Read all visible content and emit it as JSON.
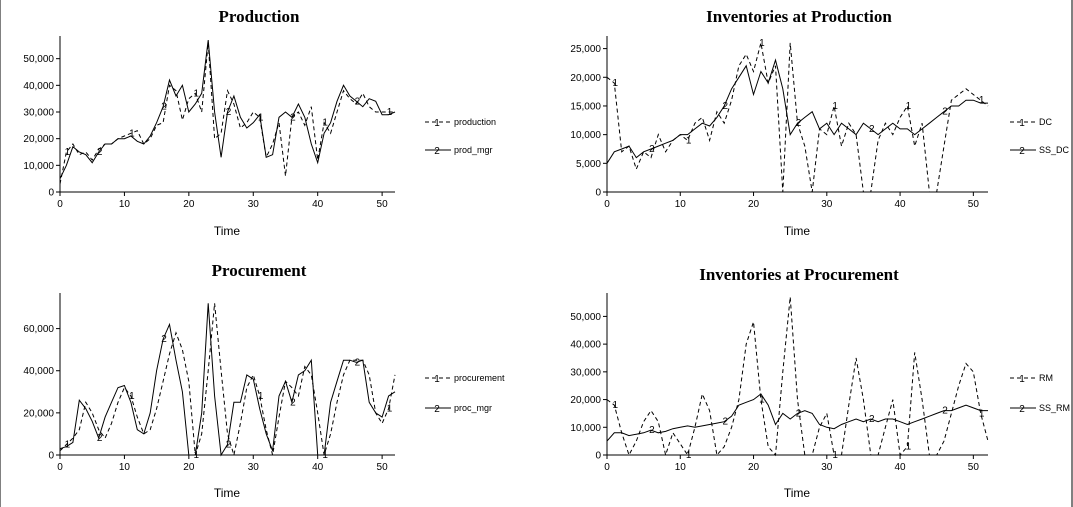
{
  "chart_data": [
    {
      "type": "line",
      "title": "Production",
      "xlabel": "Time",
      "ylabel": "",
      "xlim": [
        0,
        52
      ],
      "ylim": [
        0,
        57000
      ],
      "xticks": [
        0,
        10,
        20,
        30,
        40,
        50
      ],
      "yticks": [
        0,
        10000,
        20000,
        30000,
        40000,
        50000
      ],
      "ytick_labels": [
        "0",
        "10,000",
        "20,000",
        "30,000",
        "40,000",
        "50,000"
      ],
      "legend_position": "right",
      "series": [
        {
          "name": "production",
          "style": "dashed",
          "marker": "1",
          "x": [
            0,
            1,
            2,
            3,
            4,
            5,
            6,
            7,
            8,
            9,
            10,
            11,
            12,
            13,
            14,
            15,
            16,
            17,
            18,
            19,
            20,
            21,
            22,
            23,
            24,
            25,
            26,
            27,
            28,
            29,
            30,
            31,
            32,
            33,
            34,
            35,
            36,
            37,
            38,
            39,
            40,
            41,
            42,
            43,
            44,
            45,
            46,
            47,
            48,
            49,
            50,
            51,
            52
          ],
          "y": [
            3000,
            15000,
            18000,
            14000,
            15000,
            12000,
            16000,
            18000,
            18000,
            20000,
            21000,
            22000,
            23000,
            18000,
            20000,
            25000,
            26000,
            40000,
            38000,
            27000,
            35000,
            37000,
            30000,
            56000,
            20000,
            22000,
            38000,
            33000,
            24000,
            26000,
            30000,
            28000,
            13000,
            18000,
            26000,
            6000,
            28000,
            30000,
            25000,
            32000,
            12000,
            26000,
            22000,
            30000,
            38000,
            35000,
            33000,
            37000,
            32000,
            30000,
            30000,
            30000,
            30000
          ]
        },
        {
          "name": "prod_mgr",
          "style": "solid",
          "marker": "2",
          "x": [
            0,
            1,
            2,
            3,
            4,
            5,
            6,
            7,
            8,
            9,
            10,
            11,
            12,
            13,
            14,
            15,
            16,
            17,
            18,
            19,
            20,
            21,
            22,
            23,
            24,
            25,
            26,
            27,
            28,
            29,
            30,
            31,
            32,
            33,
            34,
            35,
            36,
            37,
            38,
            39,
            40,
            41,
            42,
            43,
            44,
            45,
            46,
            47,
            48,
            49,
            50,
            51,
            52
          ],
          "y": [
            5000,
            10000,
            17000,
            15000,
            14000,
            11000,
            15000,
            18000,
            18000,
            20000,
            20000,
            21000,
            19000,
            18000,
            21000,
            26000,
            32000,
            42000,
            36000,
            40000,
            30000,
            33000,
            37000,
            57000,
            30000,
            13000,
            30000,
            36000,
            28000,
            24000,
            26000,
            29000,
            13000,
            14000,
            28000,
            30000,
            28000,
            33000,
            28000,
            18000,
            11000,
            22000,
            26000,
            34000,
            40000,
            36000,
            34000,
            32000,
            35000,
            34000,
            29000,
            29000,
            30000
          ]
        }
      ]
    },
    {
      "type": "line",
      "title": "Inventories at Production",
      "xlabel": "Time",
      "ylabel": "",
      "xlim": [
        0,
        52
      ],
      "ylim": [
        0,
        26500
      ],
      "xticks": [
        0,
        10,
        20,
        30,
        40,
        50
      ],
      "yticks": [
        0,
        5000,
        10000,
        15000,
        20000,
        25000
      ],
      "ytick_labels": [
        "0",
        "5,000",
        "10,000",
        "15,000",
        "20,000",
        "25,000"
      ],
      "legend_position": "right",
      "series": [
        {
          "name": "DC",
          "style": "dashed",
          "marker": "1",
          "x": [
            0,
            1,
            2,
            3,
            4,
            5,
            6,
            7,
            8,
            9,
            10,
            11,
            12,
            13,
            14,
            15,
            16,
            17,
            18,
            19,
            20,
            21,
            22,
            23,
            24,
            25,
            26,
            27,
            28,
            29,
            30,
            31,
            32,
            33,
            34,
            35,
            36,
            37,
            38,
            39,
            40,
            41,
            42,
            43,
            44,
            45,
            46,
            47,
            48,
            49,
            50,
            51,
            52
          ],
          "y": [
            20000,
            19000,
            7000,
            8000,
            4000,
            7000,
            6000,
            10000,
            7000,
            9000,
            10000,
            9000,
            12000,
            13000,
            9000,
            14000,
            12000,
            16000,
            22000,
            24000,
            21000,
            26000,
            19000,
            22000,
            0,
            26000,
            12000,
            8000,
            0,
            11000,
            10000,
            15000,
            8000,
            12000,
            10000,
            0,
            0,
            9000,
            12000,
            10000,
            13000,
            15000,
            8000,
            12000,
            0,
            0,
            8000,
            16000,
            17000,
            18000,
            17000,
            16000,
            15000
          ]
        },
        {
          "name": "SS_DC",
          "style": "solid",
          "marker": "2",
          "x": [
            0,
            1,
            2,
            3,
            4,
            5,
            6,
            7,
            8,
            9,
            10,
            11,
            12,
            13,
            14,
            15,
            16,
            17,
            18,
            19,
            20,
            21,
            22,
            23,
            24,
            25,
            26,
            27,
            28,
            29,
            30,
            31,
            32,
            33,
            34,
            35,
            36,
            37,
            38,
            39,
            40,
            41,
            42,
            43,
            44,
            45,
            46,
            47,
            48,
            49,
            50,
            51,
            52
          ],
          "y": [
            5000,
            7000,
            7500,
            8000,
            6000,
            7000,
            7500,
            8000,
            8500,
            9000,
            10000,
            10000,
            11000,
            12000,
            11500,
            13000,
            15000,
            18000,
            20000,
            22000,
            17000,
            21000,
            19000,
            23000,
            18000,
            10000,
            12000,
            13000,
            14000,
            11000,
            12000,
            10000,
            12000,
            11000,
            10000,
            12000,
            11000,
            10000,
            11000,
            12000,
            11000,
            11000,
            10000,
            11000,
            12000,
            13000,
            14000,
            15000,
            15000,
            16000,
            16000,
            15500,
            15500
          ]
        }
      ]
    },
    {
      "type": "line",
      "title": "Procurement",
      "xlabel": "Time",
      "ylabel": "",
      "xlim": [
        0,
        52
      ],
      "ylim": [
        0,
        75000
      ],
      "xticks": [
        0,
        10,
        20,
        30,
        40,
        50
      ],
      "yticks": [
        0,
        20000,
        40000,
        60000
      ],
      "ytick_labels": [
        "0",
        "20,000",
        "40,000",
        "60,000"
      ],
      "legend_position": "right",
      "series": [
        {
          "name": "procurement",
          "style": "dashed",
          "marker": "1",
          "x": [
            0,
            1,
            2,
            3,
            4,
            5,
            6,
            7,
            8,
            9,
            10,
            11,
            12,
            13,
            14,
            15,
            16,
            17,
            18,
            19,
            20,
            21,
            22,
            23,
            24,
            25,
            26,
            27,
            28,
            29,
            30,
            31,
            32,
            33,
            34,
            35,
            36,
            37,
            38,
            39,
            40,
            41,
            42,
            43,
            44,
            45,
            46,
            47,
            48,
            49,
            50,
            51,
            52
          ],
          "y": [
            2000,
            5000,
            8000,
            12000,
            25000,
            20000,
            12000,
            8000,
            15000,
            25000,
            32000,
            28000,
            18000,
            10000,
            12000,
            22000,
            35000,
            48000,
            58000,
            50000,
            35000,
            0,
            10000,
            40000,
            72000,
            40000,
            10000,
            0,
            15000,
            32000,
            38000,
            28000,
            12000,
            0,
            18000,
            35000,
            32000,
            28000,
            42000,
            38000,
            20000,
            0,
            10000,
            25000,
            38000,
            45000,
            45000,
            45000,
            38000,
            20000,
            15000,
            22000,
            38000
          ]
        },
        {
          "name": "proc_mgr",
          "style": "solid",
          "marker": "2",
          "x": [
            0,
            1,
            2,
            3,
            4,
            5,
            6,
            7,
            8,
            9,
            10,
            11,
            12,
            13,
            14,
            15,
            16,
            17,
            18,
            19,
            20,
            21,
            22,
            23,
            24,
            25,
            26,
            27,
            28,
            29,
            30,
            31,
            32,
            33,
            34,
            35,
            36,
            37,
            38,
            39,
            40,
            41,
            42,
            43,
            44,
            45,
            46,
            47,
            48,
            49,
            50,
            51,
            52
          ],
          "y": [
            3000,
            4000,
            6000,
            26000,
            22000,
            16000,
            8000,
            18000,
            25000,
            32000,
            33000,
            25000,
            12000,
            10000,
            20000,
            40000,
            55000,
            62000,
            45000,
            30000,
            0,
            0,
            20000,
            72000,
            28000,
            0,
            5000,
            25000,
            25000,
            38000,
            36000,
            22000,
            10000,
            2000,
            28000,
            35000,
            25000,
            38000,
            40000,
            45000,
            0,
            0,
            25000,
            35000,
            45000,
            45000,
            44000,
            45000,
            25000,
            20000,
            18000,
            28000,
            30000
          ]
        }
      ]
    },
    {
      "type": "line",
      "title": "Inventories at Procurement",
      "xlabel": "Time",
      "ylabel": "",
      "xlim": [
        0,
        52
      ],
      "ylim": [
        0,
        57000
      ],
      "xticks": [
        0,
        10,
        20,
        30,
        40,
        50
      ],
      "yticks": [
        0,
        10000,
        20000,
        30000,
        40000,
        50000
      ],
      "ytick_labels": [
        "0",
        "10,000",
        "20,000",
        "30,000",
        "40,000",
        "50,000"
      ],
      "legend_position": "right",
      "series": [
        {
          "name": "RM",
          "style": "dashed",
          "marker": "1",
          "x": [
            0,
            1,
            2,
            3,
            4,
            5,
            6,
            7,
            8,
            9,
            10,
            11,
            12,
            13,
            14,
            15,
            16,
            17,
            18,
            19,
            20,
            21,
            22,
            23,
            24,
            25,
            26,
            27,
            28,
            29,
            30,
            31,
            32,
            33,
            34,
            35,
            36,
            37,
            38,
            39,
            40,
            41,
            42,
            43,
            44,
            45,
            46,
            47,
            48,
            49,
            50,
            51,
            52
          ],
          "y": [
            20000,
            18000,
            8000,
            0,
            5000,
            12000,
            16000,
            12000,
            0,
            8000,
            4000,
            0,
            10000,
            22000,
            16000,
            0,
            3000,
            10000,
            20000,
            40000,
            48000,
            20000,
            3000,
            0,
            30000,
            57000,
            20000,
            0,
            0,
            10000,
            15000,
            0,
            0,
            18000,
            35000,
            20000,
            0,
            0,
            10000,
            20000,
            0,
            3000,
            37000,
            20000,
            0,
            0,
            5000,
            15000,
            25000,
            33000,
            30000,
            15000,
            5000
          ]
        },
        {
          "name": "SS_RM",
          "style": "solid",
          "marker": "2",
          "x": [
            0,
            1,
            2,
            3,
            4,
            5,
            6,
            7,
            8,
            9,
            10,
            11,
            12,
            13,
            14,
            15,
            16,
            17,
            18,
            19,
            20,
            21,
            22,
            23,
            24,
            25,
            26,
            27,
            28,
            29,
            30,
            31,
            32,
            33,
            34,
            35,
            36,
            37,
            38,
            39,
            40,
            41,
            42,
            43,
            44,
            45,
            46,
            47,
            48,
            49,
            50,
            51,
            52
          ],
          "y": [
            5000,
            8000,
            8000,
            7000,
            7500,
            8000,
            9000,
            8000,
            8500,
            9500,
            10000,
            10500,
            10000,
            10500,
            11000,
            11500,
            12000,
            14000,
            18000,
            19000,
            20000,
            22000,
            18000,
            11000,
            15000,
            13000,
            15000,
            16000,
            15000,
            11000,
            10000,
            9500,
            11000,
            12000,
            13000,
            12000,
            13000,
            12000,
            13000,
            13000,
            12000,
            11000,
            12000,
            13000,
            14000,
            15000,
            16000,
            16000,
            17000,
            18000,
            17000,
            16000,
            16000
          ]
        }
      ]
    }
  ]
}
